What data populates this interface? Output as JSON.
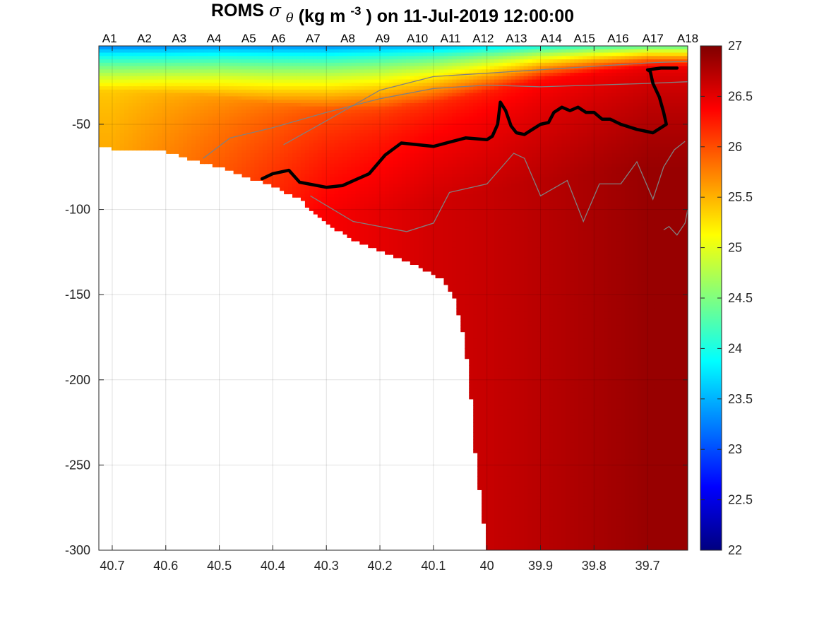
{
  "title": {
    "prefix": "ROMS",
    "symbol": "σ",
    "subscript": "θ",
    "units_open": "(kg m",
    "units_exp": "-3",
    "units_close": ")",
    "date_text": "on 11-Jul-2019 12:00:00"
  },
  "chart_data": {
    "type": "heatmap",
    "x_axis": {
      "reversed": true,
      "range": [
        40.725,
        39.625
      ],
      "ticks": [
        40.7,
        40.6,
        40.5,
        40.4,
        40.3,
        40.2,
        40.1,
        40,
        39.9,
        39.8,
        39.7
      ],
      "tick_labels": [
        "40.7",
        "40.6",
        "40.5",
        "40.4",
        "40.3",
        "40.2",
        "40.1",
        "40",
        "39.9",
        "39.8",
        "39.7"
      ]
    },
    "y_axis": {
      "range": [
        -300,
        -4
      ],
      "ticks": [
        -50,
        -100,
        -150,
        -200,
        -250,
        -300
      ],
      "tick_labels": [
        "-50",
        "-100",
        "-150",
        "-200",
        "-250",
        "-300"
      ]
    },
    "stations": {
      "labels": [
        "A1",
        "A2",
        "A3",
        "A4",
        "A5",
        "A6",
        "A7",
        "A8",
        "A9",
        "A10",
        "A11",
        "A12",
        "A13",
        "A14",
        "A15",
        "A16",
        "A17",
        "A18"
      ],
      "lat": [
        40.705,
        40.64,
        40.575,
        40.51,
        40.445,
        40.39,
        40.325,
        40.26,
        40.195,
        40.13,
        40.068,
        40.007,
        39.945,
        39.88,
        39.818,
        39.755,
        39.69,
        39.625
      ]
    },
    "colorbar": {
      "range": [
        22,
        27
      ],
      "ticks": [
        22,
        22.5,
        23,
        23.5,
        24,
        24.5,
        25,
        25.5,
        26,
        26.5,
        27
      ],
      "tick_labels": [
        "22",
        "22.5",
        "23",
        "23.5",
        "24",
        "24.5",
        "25",
        "25.5",
        "26",
        "26.5",
        "27"
      ],
      "colormap": "jet"
    },
    "bathymetry": {
      "lat": [
        40.725,
        40.69,
        40.6,
        40.55,
        40.5,
        40.45,
        40.4,
        40.35,
        40.3,
        40.25,
        40.2,
        40.15,
        40.1,
        40.08,
        40.06,
        40.04,
        40.03,
        40.02,
        40.0,
        39.625
      ],
      "depth": [
        -63,
        -65,
        -66,
        -71,
        -75,
        -81,
        -86,
        -94,
        -108,
        -118,
        -124,
        -130,
        -138,
        -142,
        -152,
        -180,
        -210,
        -250,
        -300,
        -300
      ]
    },
    "density_profile": {
      "lat": [
        40.7,
        40.6,
        40.5,
        40.4,
        40.3,
        40.2,
        40.1,
        40.0,
        39.9,
        39.8,
        39.7
      ],
      "surface_sigma": [
        22.2,
        22.2,
        22.3,
        22.3,
        22.3,
        22.4,
        22.4,
        22.5,
        22.5,
        22.5,
        22.4
      ],
      "mld": [
        30,
        31,
        33,
        37,
        40,
        40,
        36,
        30,
        23,
        19,
        16
      ],
      "mid_sigma": [
        25.35,
        25.45,
        25.55,
        25.7,
        25.85,
        25.95,
        26.05,
        26.15,
        26.25,
        26.32,
        26.4
      ],
      "deep_sigma": [
        25.6,
        25.8,
        26.0,
        26.2,
        26.4,
        26.5,
        26.6,
        26.65,
        26.72,
        26.8,
        26.88
      ]
    },
    "contour_26_3": {
      "level": 26.3,
      "lat": [
        40.42,
        40.4,
        40.37,
        40.35,
        40.3,
        40.27,
        40.22,
        40.19,
        40.16,
        40.1,
        40.04,
        40.0,
        39.99,
        39.98,
        39.975,
        39.965,
        39.955,
        39.945,
        39.93,
        39.915,
        39.9,
        39.885,
        39.875,
        39.86,
        39.845,
        39.83,
        39.815,
        39.8,
        39.785,
        39.77,
        39.75,
        39.72,
        39.69,
        39.675,
        39.665,
        39.67,
        39.678,
        39.69,
        39.695,
        39.7,
        39.675,
        39.645
      ],
      "depth": [
        -82,
        -79,
        -77,
        -84,
        -87,
        -86,
        -79,
        -68,
        -61,
        -63,
        -58,
        -59,
        -57,
        -50,
        -37,
        -42,
        -51,
        -55,
        -56,
        -53,
        -50,
        -49,
        -43,
        -40,
        -42,
        -40,
        -43,
        -43,
        -47,
        -47,
        -50,
        -53,
        -55,
        -52,
        -50,
        -43,
        -34,
        -26,
        -19,
        -18,
        -17,
        -17
      ]
    },
    "gray_contours": [
      {
        "level": 26.0,
        "lat": [
          40.53,
          40.48,
          40.4,
          40.3,
          40.2,
          40.1,
          40.0,
          39.9,
          39.8,
          39.7,
          39.625
        ],
        "depth": [
          -70,
          -58,
          -52,
          -43,
          -35,
          -29,
          -27,
          -28,
          -27,
          -26,
          -25
        ]
      },
      {
        "level": 25.5,
        "lat": [
          40.38,
          40.3,
          40.2,
          40.1,
          40.0,
          39.9,
          39.8,
          39.7,
          39.625
        ],
        "depth": [
          -62,
          -48,
          -30,
          -22,
          -20,
          -18,
          -16,
          -14,
          -13
        ]
      },
      {
        "level": 26.5,
        "lat": [
          40.33,
          40.25,
          40.15,
          40.1,
          40.07,
          40.0,
          39.95,
          39.93,
          39.9,
          39.85,
          39.82,
          39.79,
          39.75,
          39.72,
          39.69,
          39.67,
          39.65,
          39.63
        ],
        "depth": [
          -92,
          -107,
          -113,
          -108,
          -90,
          -85,
          -67,
          -70,
          -92,
          -83,
          -107,
          -85,
          -85,
          -72,
          -94,
          -75,
          -65,
          -60
        ]
      },
      {
        "level": 26.8,
        "lat": [
          39.67,
          39.66,
          39.645,
          39.63,
          39.625
        ],
        "depth": [
          -112,
          -110,
          -115,
          -108,
          -100
        ]
      }
    ]
  }
}
